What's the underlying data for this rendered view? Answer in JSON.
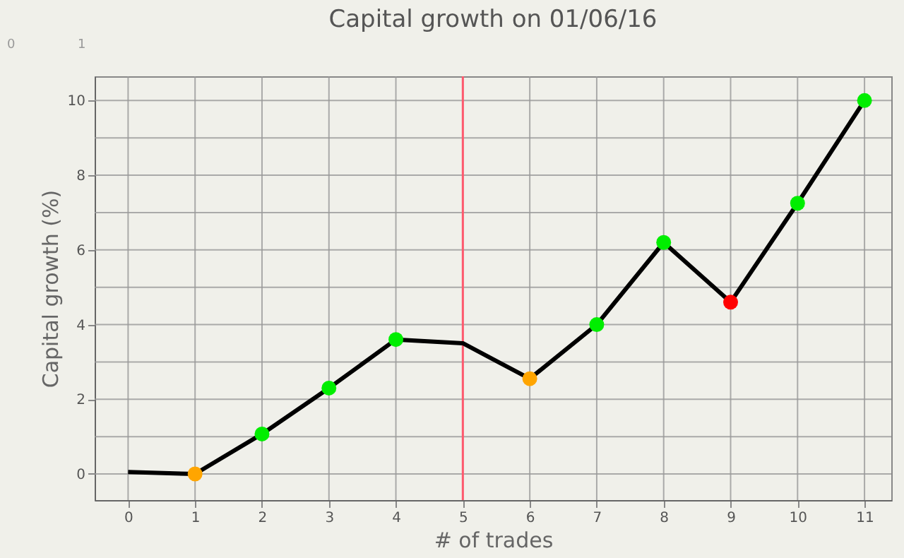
{
  "chart_data": {
    "type": "line",
    "title": "Capital growth on 01/06/16",
    "xlabel": "# of trades",
    "ylabel": "Capital growth (%)",
    "annotations": [
      "0",
      "1"
    ],
    "series": [
      {
        "color": "#000000",
        "x": [
          0,
          1,
          2,
          3,
          4,
          5,
          6,
          7,
          8,
          9,
          10,
          11
        ],
        "values": [
          0.05,
          0,
          1.07,
          2.3,
          3.6,
          3.5,
          2.55,
          4.0,
          6.2,
          4.6,
          7.25,
          10.0
        ],
        "marker": "none",
        "line_style": "solid"
      },
      {
        "type": "scatter",
        "x": [
          1,
          2,
          3,
          4,
          6,
          7,
          8,
          9,
          10,
          11
        ],
        "values": [
          0,
          1.07,
          2.3,
          3.6,
          2.55,
          4.0,
          6.2,
          4.6,
          7.25,
          10.0
        ],
        "colors": [
          "#ffa500",
          "#00ee00",
          "#00ee00",
          "#00ee00",
          "#ffa500",
          "#00ee00",
          "#00ee00",
          "#ff0000",
          "#00ee00",
          "#00ee00"
        ],
        "marker": "circle"
      }
    ],
    "xlim": [
      -0.5,
      11.4
    ],
    "xticks": [
      0,
      1,
      2,
      3,
      4,
      5,
      6,
      7,
      8,
      9,
      10,
      11
    ],
    "ylim": [
      -0.7,
      10.65
    ],
    "yticks": [
      0,
      {
        "value": 1,
        "label": null
      },
      2,
      {
        "value": 3,
        "label": null
      },
      4,
      {
        "value": 5,
        "label": null
      },
      6,
      {
        "value": 7,
        "label": null
      },
      8,
      {
        "value": 9,
        "label": null
      },
      10
    ],
    "grid": true,
    "ref_lines": [
      {
        "axis": "x",
        "value": 5,
        "label": null,
        "color": "#ff5a6e"
      }
    ]
  }
}
